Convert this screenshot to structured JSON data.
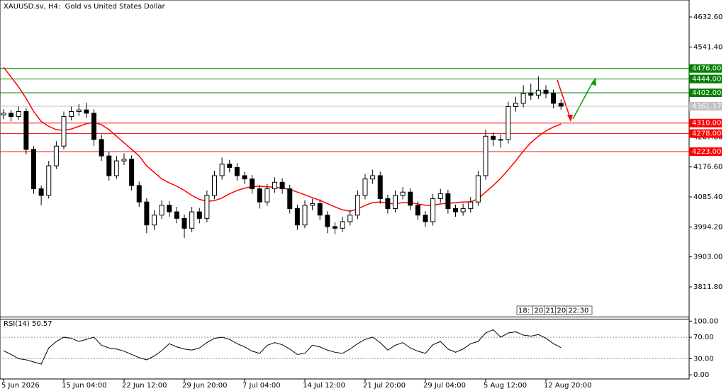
{
  "chart_data": {
    "type": "candlestick",
    "title": "XAUUSD.sv, H4:  Gold vs United States Dollar",
    "categories": [
      "5 Jun 2026",
      null,
      null,
      null,
      null,
      null,
      null,
      null,
      "15 Jun 04:00",
      null,
      null,
      null,
      null,
      null,
      null,
      null,
      "22 Jun 12:00",
      null,
      null,
      null,
      null,
      null,
      null,
      null,
      "29 Jun 20:00",
      null,
      null,
      null,
      null,
      null,
      null,
      null,
      "7 Jul 04:00",
      null,
      null,
      null,
      null,
      null,
      null,
      null,
      "14 Jul 12:00",
      null,
      null,
      null,
      null,
      null,
      null,
      null,
      "21 Jul 20:00",
      null,
      null,
      null,
      null,
      null,
      null,
      null,
      "29 Jul 04:00",
      null,
      null,
      null,
      null,
      null,
      null,
      null,
      "5 Aug 12:00",
      null,
      null,
      null,
      null,
      null,
      null,
      null,
      "12 Aug 20:00",
      null,
      null
    ],
    "candles": [
      [
        4335,
        4352,
        4322,
        4340
      ],
      [
        4340,
        4350,
        4315,
        4330
      ],
      [
        4330,
        4360,
        4320,
        4345
      ],
      [
        4345,
        4355,
        4215,
        4230
      ],
      [
        4230,
        4240,
        4095,
        4110
      ],
      [
        4110,
        4120,
        4060,
        4090
      ],
      [
        4090,
        4195,
        4080,
        4180
      ],
      [
        4180,
        4255,
        4170,
        4240
      ],
      [
        4240,
        4345,
        4230,
        4330
      ],
      [
        4330,
        4360,
        4318,
        4345
      ],
      [
        4345,
        4368,
        4332,
        4350
      ],
      [
        4350,
        4372,
        4325,
        4340
      ],
      [
        4340,
        4352,
        4240,
        4260
      ],
      [
        4260,
        4275,
        4195,
        4210
      ],
      [
        4210,
        4222,
        4135,
        4150
      ],
      [
        4150,
        4210,
        4140,
        4195
      ],
      [
        4195,
        4218,
        4182,
        4200
      ],
      [
        4200,
        4212,
        4105,
        4120
      ],
      [
        4120,
        4132,
        4055,
        4070
      ],
      [
        4070,
        4082,
        3975,
        4000
      ],
      [
        4000,
        4045,
        3985,
        4030
      ],
      [
        4030,
        4075,
        4018,
        4060
      ],
      [
        4060,
        4072,
        4025,
        4040
      ],
      [
        4040,
        4055,
        4005,
        4020
      ],
      [
        4020,
        4032,
        3960,
        3990
      ],
      [
        3990,
        4055,
        3978,
        4040
      ],
      [
        4040,
        4052,
        4005,
        4020
      ],
      [
        4020,
        4105,
        4008,
        4090
      ],
      [
        4090,
        4165,
        4078,
        4150
      ],
      [
        4150,
        4205,
        4138,
        4185
      ],
      [
        4185,
        4198,
        4160,
        4175
      ],
      [
        4175,
        4188,
        4135,
        4150
      ],
      [
        4150,
        4162,
        4125,
        4140
      ],
      [
        4140,
        4152,
        4095,
        4110
      ],
      [
        4110,
        4122,
        4050,
        4070
      ],
      [
        4070,
        4125,
        4058,
        4110
      ],
      [
        4110,
        4145,
        4098,
        4130
      ],
      [
        4130,
        4142,
        4095,
        4110
      ],
      [
        4110,
        4122,
        4035,
        4050
      ],
      [
        4050,
        4062,
        3985,
        4000
      ],
      [
        4000,
        4075,
        3990,
        4060
      ],
      [
        4060,
        4080,
        4045,
        4065
      ],
      [
        4065,
        4078,
        4015,
        4030
      ],
      [
        4030,
        4042,
        3975,
        3995
      ],
      [
        3995,
        4008,
        3972,
        3990
      ],
      [
        3990,
        4025,
        3978,
        4010
      ],
      [
        4010,
        4045,
        3998,
        4030
      ],
      [
        4030,
        4105,
        4018,
        4090
      ],
      [
        4090,
        4155,
        4078,
        4140
      ],
      [
        4140,
        4168,
        4125,
        4150
      ],
      [
        4150,
        4162,
        4065,
        4080
      ],
      [
        4080,
        4092,
        4035,
        4050
      ],
      [
        4050,
        4105,
        4038,
        4090
      ],
      [
        4090,
        4115,
        4078,
        4100
      ],
      [
        4100,
        4112,
        4045,
        4060
      ],
      [
        4060,
        4072,
        4015,
        4030
      ],
      [
        4030,
        4042,
        3995,
        4010
      ],
      [
        4010,
        4095,
        3998,
        4080
      ],
      [
        4080,
        4110,
        4068,
        4095
      ],
      [
        4095,
        4107,
        4035,
        4050
      ],
      [
        4050,
        4062,
        4025,
        4040
      ],
      [
        4040,
        4065,
        4028,
        4050
      ],
      [
        4050,
        4085,
        4038,
        4070
      ],
      [
        4070,
        4165,
        4058,
        4150
      ],
      [
        4150,
        4290,
        4138,
        4270
      ],
      [
        4270,
        4282,
        4240,
        4260
      ],
      [
        4260,
        4275,
        4235,
        4260
      ],
      [
        4260,
        4375,
        4248,
        4360
      ],
      [
        4360,
        4390,
        4345,
        4370
      ],
      [
        4370,
        4425,
        4358,
        4400
      ],
      [
        4400,
        4430,
        4380,
        4395
      ],
      [
        4395,
        4452,
        4383,
        4410
      ],
      [
        4410,
        4425,
        4385,
        4400
      ],
      [
        4400,
        4412,
        4355,
        4370
      ],
      [
        4370,
        4382,
        4350,
        4361.17
      ]
    ],
    "ylim": [
      3721.3,
      4684.3
    ],
    "yticks": [
      {
        "value": 4632.6,
        "label": "4632.60"
      },
      {
        "value": 4541.4,
        "label": "4541.40"
      },
      {
        "value": 4267.8,
        "label": "4267.80"
      },
      {
        "value": 4176.6,
        "label": "4176.60"
      },
      {
        "value": 4085.4,
        "label": "4085.40"
      },
      {
        "value": 3994.2,
        "label": "3994.20"
      },
      {
        "value": 3903,
        "label": "3903.00"
      },
      {
        "value": 3811.8,
        "label": "3811.80"
      }
    ],
    "levels": [
      {
        "value": 4476,
        "label": "4476.00",
        "color": "#008000"
      },
      {
        "value": 4444,
        "label": "4444.00",
        "color": "#008000"
      },
      {
        "value": 4402,
        "label": "4402.00",
        "color": "#008000"
      },
      {
        "value": 4310,
        "label": "4310.00",
        "color": "#ff0000"
      },
      {
        "value": 4278,
        "label": "4278.00",
        "color": "#ff0000"
      },
      {
        "value": 4223,
        "label": "4223.00",
        "color": "#ff0000"
      }
    ],
    "current_price": {
      "value": 4361.17,
      "label": "4361.17",
      "color": "#c0c0c0"
    },
    "ma": {
      "color": "#ff0000",
      "values": [
        4480,
        4450,
        4420,
        4385,
        4345,
        4315,
        4300,
        4290,
        4288,
        4292,
        4300,
        4308,
        4312,
        4305,
        4290,
        4270,
        4250,
        4230,
        4210,
        4180,
        4160,
        4140,
        4128,
        4118,
        4105,
        4090,
        4078,
        4072,
        4074,
        4082,
        4095,
        4105,
        4112,
        4117,
        4118,
        4116,
        4115,
        4112,
        4108,
        4100,
        4092,
        4083,
        4075,
        4065,
        4055,
        4046,
        4042,
        4048,
        4060,
        4068,
        4070,
        4066,
        4064,
        4068,
        4068,
        4064,
        4060,
        4060,
        4064,
        4066,
        4068,
        4070,
        4070,
        4080,
        4100,
        4120,
        4142,
        4168,
        4195,
        4225,
        4250,
        4270,
        4286,
        4298,
        4307
      ]
    },
    "rsi": {
      "label": "RSI(14) 50.57",
      "color": "#000000",
      "ylim": [
        -9,
        107
      ],
      "yticks": [
        {
          "value": 100,
          "label": "100.00"
        },
        {
          "value": 70,
          "label": "70.00"
        },
        {
          "value": 30,
          "label": "30.00"
        },
        {
          "value": 0,
          "label": "0.00"
        }
      ],
      "values": [
        45,
        38,
        30,
        28,
        24,
        20,
        50,
        62,
        70,
        68,
        62,
        66,
        70,
        55,
        50,
        48,
        44,
        38,
        32,
        28,
        35,
        45,
        58,
        52,
        48,
        46,
        50,
        60,
        68,
        70,
        66,
        58,
        52,
        44,
        40,
        55,
        60,
        56,
        48,
        38,
        40,
        55,
        52,
        46,
        42,
        40,
        48,
        58,
        66,
        70,
        60,
        46,
        55,
        60,
        50,
        44,
        40,
        56,
        62,
        48,
        42,
        48,
        58,
        62,
        78,
        84,
        70,
        78,
        80,
        74,
        72,
        75,
        68,
        58,
        50.57
      ]
    },
    "time_boxes": [
      "18:",
      "20",
      "21",
      "20",
      "22:30"
    ]
  }
}
